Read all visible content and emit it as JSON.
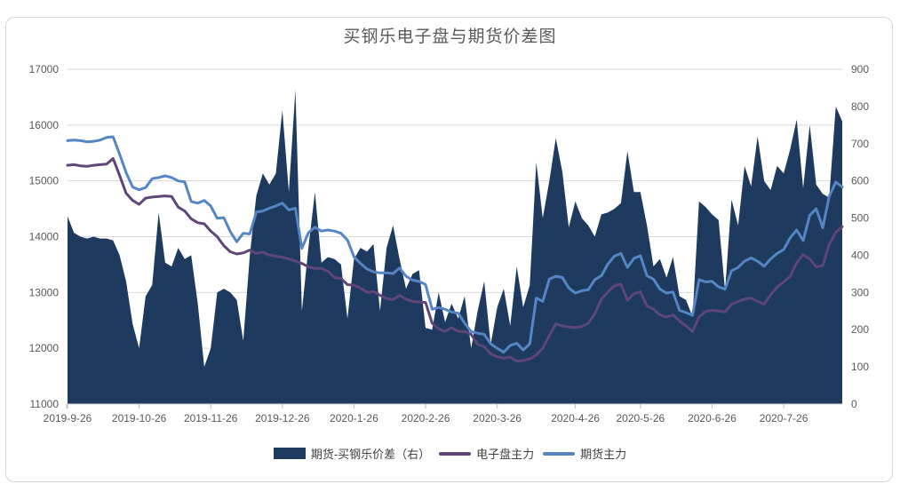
{
  "chart_data": {
    "type": "combo",
    "title": "买钢乐电子盘与期货价差图",
    "grid": "horizontal",
    "legend_position": "bottom",
    "n_points": 120,
    "left_axis": {
      "min": 11000,
      "max": 17000,
      "step": 1000,
      "ticks": [
        "17000",
        "16000",
        "15000",
        "14000",
        "13000",
        "12000",
        "11000"
      ]
    },
    "right_axis": {
      "min": 0,
      "max": 900,
      "step": 100,
      "ticks": [
        "900",
        "800",
        "700",
        "600",
        "500",
        "400",
        "300",
        "200",
        "100",
        "0"
      ]
    },
    "x_tick_labels": [
      "2019-9-26",
      "2019-10-26",
      "2019-11-26",
      "2019-12-26",
      "2020-1-26",
      "2020-2-26",
      "2020-3-26",
      "2020-4-26",
      "2020-5-26",
      "2020-6-26",
      "2020-7-26"
    ],
    "x_tick_indices": [
      0,
      11,
      22,
      33,
      44,
      55,
      66,
      78,
      88,
      99,
      110
    ],
    "colors": {
      "area_navy": "#1E3A5E",
      "line_purple": "#5E4778",
      "line_blue": "#5585C5",
      "gridline": "#D9D9D9",
      "axis_text": "#595959",
      "title_text": "#595959",
      "border": "#D7D7D7",
      "legend_text": "#404040"
    },
    "series": [
      {
        "name": "期货-买钢乐价差（右）",
        "type": "area",
        "axis": "right",
        "color": "#1E3A5E",
        "values": [
          505,
          460,
          450,
          445,
          450,
          445,
          445,
          440,
          400,
          330,
          215,
          150,
          290,
          320,
          515,
          380,
          370,
          420,
          390,
          400,
          270,
          100,
          150,
          300,
          310,
          300,
          280,
          170,
          400,
          560,
          620,
          590,
          620,
          790,
          570,
          845,
          250,
          420,
          570,
          380,
          395,
          390,
          375,
          230,
          390,
          420,
          410,
          430,
          250,
          420,
          480,
          390,
          310,
          350,
          360,
          205,
          200,
          300,
          220,
          270,
          230,
          290,
          150,
          250,
          330,
          160,
          260,
          310,
          210,
          370,
          260,
          320,
          650,
          500,
          600,
          715,
          625,
          475,
          545,
          500,
          480,
          450,
          510,
          515,
          525,
          540,
          680,
          570,
          570,
          480,
          370,
          390,
          340,
          395,
          290,
          280,
          235,
          545,
          530,
          510,
          495,
          305,
          550,
          480,
          640,
          585,
          720,
          600,
          575,
          640,
          620,
          685,
          765,
          580,
          750,
          590,
          565,
          555,
          800,
          760
        ]
      },
      {
        "name": "电子盘主力",
        "type": "line",
        "axis": "left",
        "color": "#5E4778",
        "values": [
          15280,
          15290,
          15270,
          15260,
          15280,
          15290,
          15300,
          15400,
          15100,
          14780,
          14650,
          14580,
          14690,
          14710,
          14720,
          14730,
          14720,
          14530,
          14460,
          14320,
          14250,
          14230,
          14100,
          14000,
          13840,
          13730,
          13690,
          13710,
          13760,
          13700,
          13720,
          13670,
          13650,
          13630,
          13600,
          13560,
          13520,
          13460,
          13430,
          13430,
          13380,
          13270,
          13250,
          13140,
          13130,
          13080,
          13000,
          13020,
          12950,
          12890,
          12870,
          12950,
          12880,
          12840,
          12830,
          12820,
          12450,
          12350,
          12300,
          12370,
          12300,
          12300,
          12250,
          12070,
          12030,
          11900,
          11850,
          11820,
          11840,
          11770,
          11780,
          11810,
          11880,
          12000,
          12230,
          12440,
          12400,
          12380,
          12370,
          12390,
          12450,
          12620,
          12880,
          13010,
          13120,
          13150,
          12860,
          12980,
          13010,
          12760,
          12700,
          12600,
          12560,
          12600,
          12490,
          12400,
          12300,
          12560,
          12660,
          12680,
          12670,
          12650,
          12790,
          12840,
          12880,
          12900,
          12840,
          12790,
          12960,
          13100,
          13190,
          13290,
          13530,
          13680,
          13600,
          13460,
          13480,
          13860,
          14080,
          14180
        ]
      },
      {
        "name": "期货主力",
        "type": "line",
        "axis": "left",
        "color": "#5585C5",
        "values": [
          15720,
          15730,
          15720,
          15700,
          15710,
          15730,
          15780,
          15790,
          15480,
          15150,
          14890,
          14840,
          14880,
          15040,
          15060,
          15090,
          15060,
          15000,
          14980,
          14630,
          14600,
          14650,
          14550,
          14330,
          14340,
          14090,
          13910,
          14060,
          14050,
          14440,
          14460,
          14510,
          14550,
          14600,
          14480,
          14510,
          13790,
          14070,
          14170,
          14100,
          14120,
          14100,
          14060,
          13940,
          13640,
          13520,
          13420,
          13370,
          13350,
          13350,
          13340,
          13440,
          13290,
          13220,
          13200,
          13140,
          12700,
          12730,
          12700,
          12650,
          12630,
          12450,
          12300,
          12270,
          12250,
          12080,
          12000,
          11930,
          12050,
          12090,
          11970,
          12080,
          12900,
          12840,
          13240,
          13290,
          13270,
          13080,
          12990,
          13030,
          13050,
          13230,
          13300,
          13510,
          13650,
          13700,
          13450,
          13610,
          13660,
          13300,
          13240,
          13060,
          12990,
          13010,
          12680,
          12640,
          12590,
          13230,
          13190,
          13200,
          13100,
          13060,
          13390,
          13450,
          13560,
          13620,
          13560,
          13470,
          13600,
          13700,
          13770,
          13980,
          14120,
          13930,
          14380,
          14500,
          14160,
          14720,
          14980,
          14890
        ]
      }
    ]
  },
  "legend": {
    "items": [
      {
        "label": "期货-买钢乐价差（右）",
        "swatch": "area",
        "color": "#1E3A5E"
      },
      {
        "label": "电子盘主力",
        "swatch": "line",
        "color": "#5E4778"
      },
      {
        "label": "期货主力",
        "swatch": "line",
        "color": "#5585C5"
      }
    ]
  }
}
